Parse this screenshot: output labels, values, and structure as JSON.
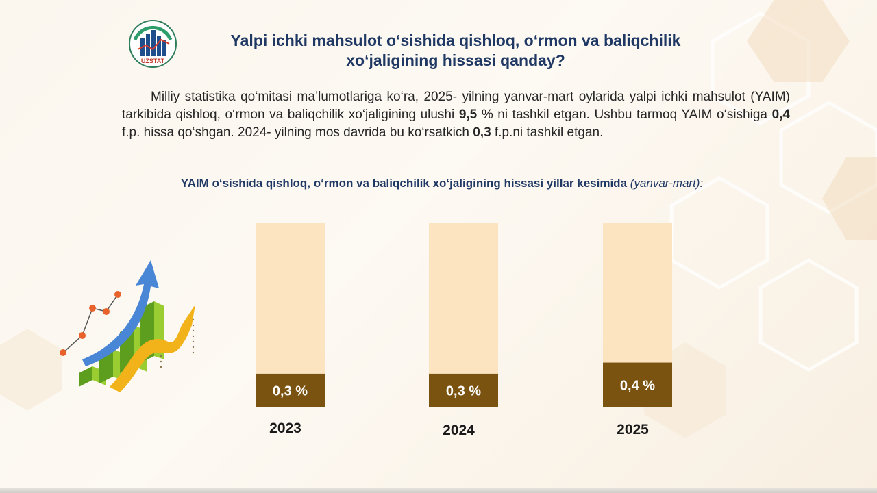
{
  "header": {
    "logo_text": "UZSTAT",
    "title": "Yalpi ichki mahsulot o‘sishida qishloq, o‘rmon va baliqchilik\nxo‘jaligining hissasi qanday?"
  },
  "description": {
    "part1": "Milliy statistika qo‘mitasi ma’lumotlariga ko‘ra, 2025- yilning yanvar-mart oylarida yalpi ichki mahsulot (YAIM) tarkibida qishloq, o‘rmon va baliqchilik xo‘jaligining ulushi ",
    "share_value": "9,5",
    "part2": " % ni tashkil etgan. Ushbu tarmoq YAIM o‘sishiga ",
    "contribution_value": "0,4",
    "part3": " f.p. hissa qo‘shgan. 2024- yilning mos davrida bu ko‘rsatkich ",
    "prev_value": "0,3",
    "part4": " f.p.ni tashkil etgan."
  },
  "chart_data": {
    "type": "bar",
    "title": "YAIM o‘sishida qishloq, o‘rmon va baliqchilik xo‘jaligining hissasi yillar kesimida",
    "subtitle": "(yanvar-mart):",
    "categories": [
      "2023",
      "2024",
      "2025"
    ],
    "values": [
      0.3,
      0.3,
      0.4
    ],
    "data_labels": [
      "0,3 %",
      "0,3 %",
      "0,4 %"
    ],
    "ylim": [
      0,
      1.65
    ],
    "grid": false,
    "legend": "none",
    "colors": {
      "value_bar": "#7b5310",
      "background_bar": "#fce4c0",
      "label_text": "#ffffff",
      "category_text": "#1a1a1a"
    }
  },
  "colors": {
    "title": "#1f3864",
    "text": "#262626"
  }
}
